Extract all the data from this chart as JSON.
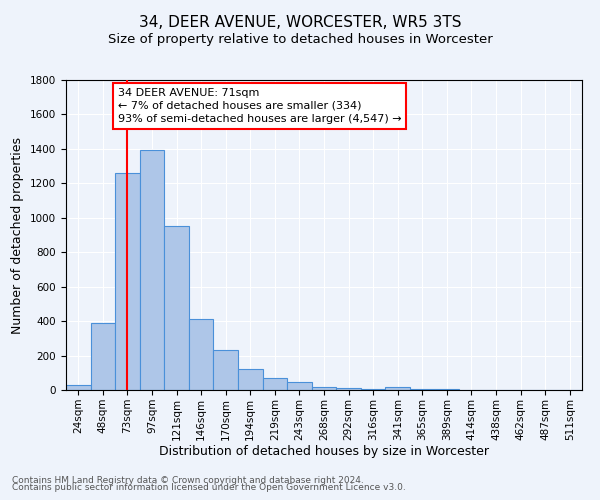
{
  "title": "34, DEER AVENUE, WORCESTER, WR5 3TS",
  "subtitle": "Size of property relative to detached houses in Worcester",
  "xlabel": "Distribution of detached houses by size in Worcester",
  "ylabel": "Number of detached properties",
  "footnote1": "Contains HM Land Registry data © Crown copyright and database right 2024.",
  "footnote2": "Contains public sector information licensed under the Open Government Licence v3.0.",
  "bin_labels": [
    "24sqm",
    "48sqm",
    "73sqm",
    "97sqm",
    "121sqm",
    "146sqm",
    "170sqm",
    "194sqm",
    "219sqm",
    "243sqm",
    "268sqm",
    "292sqm",
    "316sqm",
    "341sqm",
    "365sqm",
    "389sqm",
    "414sqm",
    "438sqm",
    "462sqm",
    "487sqm",
    "511sqm"
  ],
  "bar_values": [
    30,
    390,
    1260,
    1395,
    950,
    410,
    235,
    120,
    72,
    45,
    18,
    10,
    8,
    15,
    5,
    3,
    0,
    0,
    0,
    0,
    0
  ],
  "bar_color": "#aec6e8",
  "bar_edge_color": "#4a90d9",
  "annotation_line1": "34 DEER AVENUE: 71sqm",
  "annotation_line2": "← 7% of detached houses are smaller (334)",
  "annotation_line3": "93% of semi-detached houses are larger (4,547) →",
  "annotation_box_color": "white",
  "annotation_box_edge_color": "red",
  "vline_x": 2.0,
  "vline_color": "red",
  "ylim": [
    0,
    1800
  ],
  "yticks": [
    0,
    200,
    400,
    600,
    800,
    1000,
    1200,
    1400,
    1600,
    1800
  ],
  "background_color": "#eef3fb",
  "grid_color": "white",
  "title_fontsize": 11,
  "subtitle_fontsize": 9.5,
  "xlabel_fontsize": 9,
  "ylabel_fontsize": 9,
  "tick_fontsize": 7.5,
  "annotation_fontsize": 8,
  "footnote_fontsize": 6.5
}
